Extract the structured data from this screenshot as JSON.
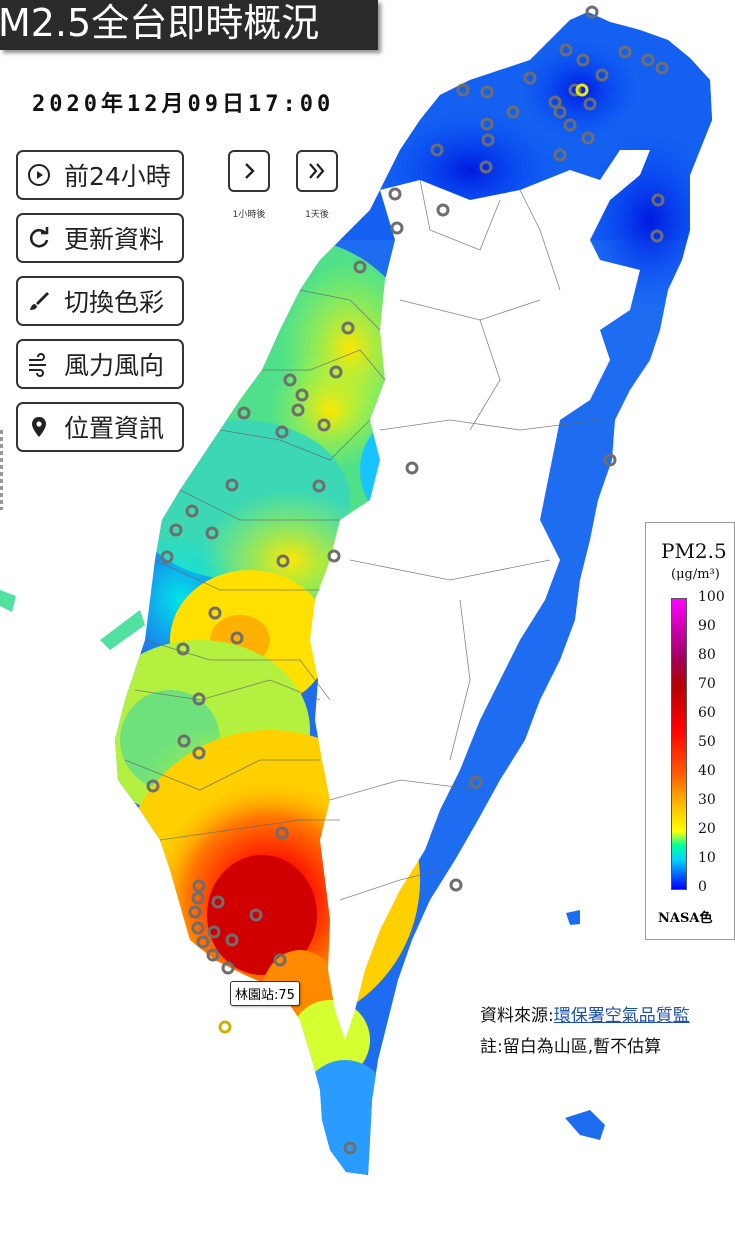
{
  "header": {
    "title": "M2.5全台即時概況",
    "timestamp": "2020年12月09日17:00"
  },
  "buttons": [
    {
      "label": "前24小時",
      "icon": "play-circle-icon"
    },
    {
      "label": "更新資料",
      "icon": "refresh-icon"
    },
    {
      "label": "切換色彩",
      "icon": "paint-brush-icon"
    },
    {
      "label": "風力風向",
      "icon": "wind-icon"
    },
    {
      "label": "位置資訊",
      "icon": "location-pin-icon"
    }
  ],
  "stepper": {
    "next_hour": "1小時後",
    "next_day": "1天後"
  },
  "legend": {
    "title": "PM2.5",
    "unit": "(μg/m³)",
    "ticks": [
      "100",
      "90",
      "80",
      "70",
      "60",
      "50",
      "40",
      "30",
      "20",
      "10",
      "0"
    ],
    "footer": "NASA色",
    "colors": {
      "low": "#0000ff",
      "mid": "#ffff00",
      "high": "#ff0000",
      "max": "#ff00ff"
    }
  },
  "popup": {
    "label": "林園站:75"
  },
  "footer": {
    "source_prefix": "資料來源:",
    "source_link": "環保署空氣品質監",
    "note": "註:留白為山區,暫不估算"
  }
}
